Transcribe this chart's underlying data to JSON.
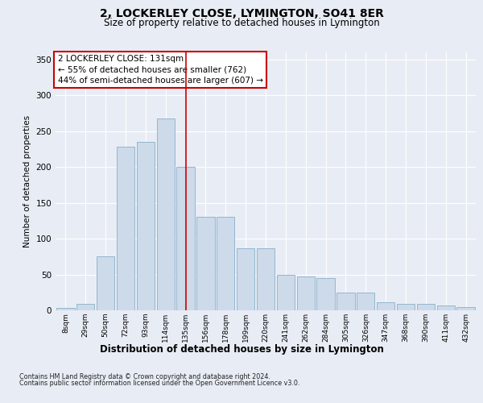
{
  "title1": "2, LOCKERLEY CLOSE, LYMINGTON, SO41 8ER",
  "title2": "Size of property relative to detached houses in Lymington",
  "xlabel": "Distribution of detached houses by size in Lymington",
  "ylabel": "Number of detached properties",
  "categories": [
    "8sqm",
    "29sqm",
    "50sqm",
    "72sqm",
    "93sqm",
    "114sqm",
    "135sqm",
    "156sqm",
    "178sqm",
    "199sqm",
    "220sqm",
    "241sqm",
    "262sqm",
    "284sqm",
    "305sqm",
    "326sqm",
    "347sqm",
    "368sqm",
    "390sqm",
    "411sqm",
    "432sqm"
  ],
  "values": [
    3,
    9,
    75,
    228,
    235,
    268,
    200,
    130,
    130,
    87,
    87,
    50,
    47,
    45,
    25,
    25,
    11,
    9,
    9,
    7,
    5
  ],
  "bar_color": "#ccdaea",
  "bar_edge_color": "#8aafc8",
  "vline_color": "#cc0000",
  "vline_bin_index": 6,
  "annotation_text": "2 LOCKERLEY CLOSE: 131sqm\n← 55% of detached houses are smaller (762)\n44% of semi-detached houses are larger (607) →",
  "annotation_box_color": "white",
  "annotation_box_edge_color": "#cc0000",
  "ylim": [
    0,
    360
  ],
  "yticks": [
    0,
    50,
    100,
    150,
    200,
    250,
    300,
    350
  ],
  "footer1": "Contains HM Land Registry data © Crown copyright and database right 2024.",
  "footer2": "Contains public sector information licensed under the Open Government Licence v3.0.",
  "fig_bg_color": "#e8edf5",
  "plot_bg_color": "#e8edf5",
  "title1_fontsize": 10,
  "title2_fontsize": 8.5,
  "ylabel_fontsize": 7.5,
  "xlabel_fontsize": 8.5,
  "tick_fontsize": 6.5,
  "ytick_fontsize": 7.5,
  "annot_fontsize": 7.5,
  "footer_fontsize": 5.8
}
